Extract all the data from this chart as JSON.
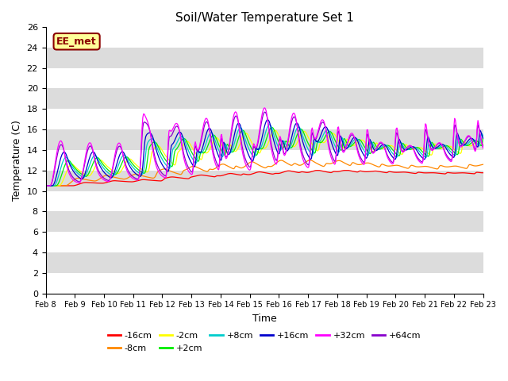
{
  "title": "Soil/Water Temperature Set 1",
  "xlabel": "Time",
  "ylabel": "Temperature (C)",
  "annotation_text": "EE_met",
  "annotation_color": "#8B0000",
  "annotation_bg": "#FFFF99",
  "xlim": [
    0,
    15
  ],
  "ylim": [
    0,
    26
  ],
  "yticks": [
    0,
    2,
    4,
    6,
    8,
    10,
    12,
    14,
    16,
    18,
    20,
    22,
    24,
    26
  ],
  "xtick_labels": [
    "Feb 8",
    "Feb 9",
    "Feb 10",
    "Feb 11",
    "Feb 12",
    "Feb 13",
    "Feb 14",
    "Feb 15",
    "Feb 16",
    "Feb 17",
    "Feb 18",
    "Feb 19",
    "Feb 20",
    "Feb 21",
    "Feb 22",
    "Feb 23"
  ],
  "series": [
    {
      "label": "-16cm",
      "color": "#FF0000"
    },
    {
      "label": "-8cm",
      "color": "#FF8800"
    },
    {
      "label": "-2cm",
      "color": "#FFFF00"
    },
    {
      "label": "+2cm",
      "color": "#00EE00"
    },
    {
      "label": "+8cm",
      "color": "#00CCCC"
    },
    {
      "label": "+16cm",
      "color": "#0000CC"
    },
    {
      "label": "+32cm",
      "color": "#FF00FF"
    },
    {
      "label": "+64cm",
      "color": "#8800CC"
    }
  ],
  "bg_color": "#DCDCDC",
  "grid_color": "#FFFFFF",
  "n_points": 600
}
